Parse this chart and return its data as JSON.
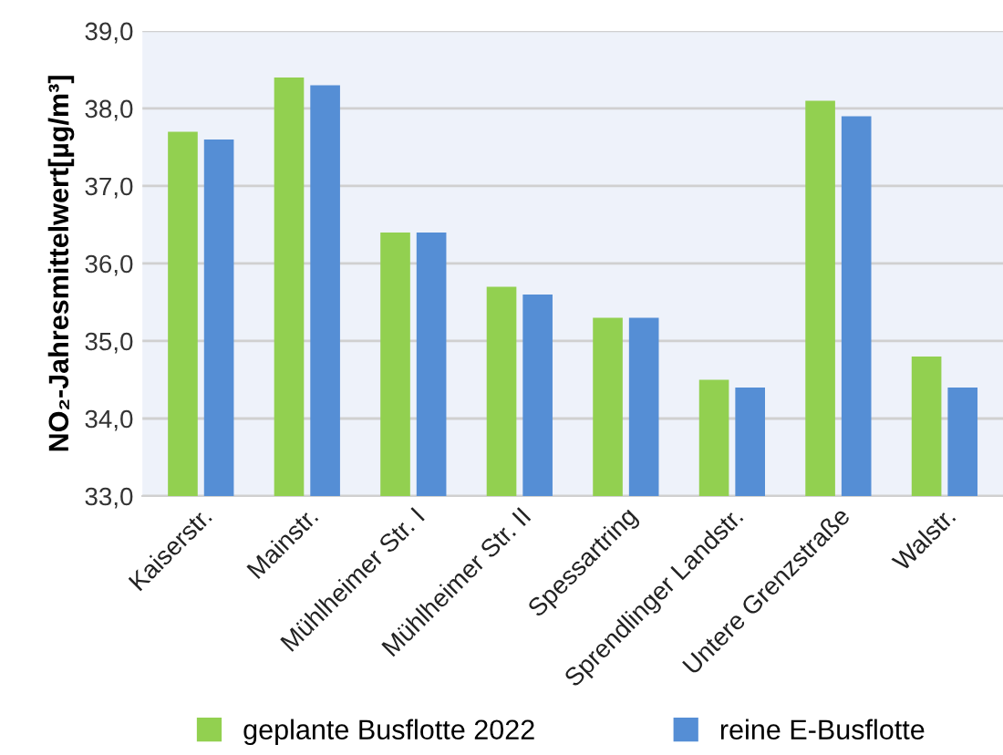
{
  "chart_data": {
    "type": "bar",
    "ylabel": "NO₂-Jahresmittelwert[µg/m³]",
    "categories": [
      "Kaiserstr.",
      "Mainstr.",
      "Mühlheimer Str. I",
      "Mühlheimer Str. II",
      "Spessartring",
      "Sprendlinger Landstr.",
      "Untere Grenzstraße",
      "Walstr."
    ],
    "series": [
      {
        "name": "geplante Busflotte 2022",
        "color": "#92d050",
        "values": [
          37.7,
          38.4,
          36.4,
          35.7,
          35.3,
          34.5,
          38.1,
          34.8
        ]
      },
      {
        "name": "reine E-Busflotte",
        "color": "#558ed5",
        "values": [
          37.6,
          38.3,
          36.4,
          35.6,
          35.3,
          34.4,
          37.9,
          34.4
        ]
      }
    ],
    "ylim": [
      33,
      39
    ],
    "yticks": [
      {
        "value": 33,
        "label": "33,0"
      },
      {
        "value": 34,
        "label": "34,0"
      },
      {
        "value": 35,
        "label": "35,0"
      },
      {
        "value": 36,
        "label": "36,0"
      },
      {
        "value": 37,
        "label": "37,0"
      },
      {
        "value": 38,
        "label": "38,0"
      },
      {
        "value": 39,
        "label": "39,0"
      }
    ],
    "grid": "y",
    "legend": "bottom"
  }
}
